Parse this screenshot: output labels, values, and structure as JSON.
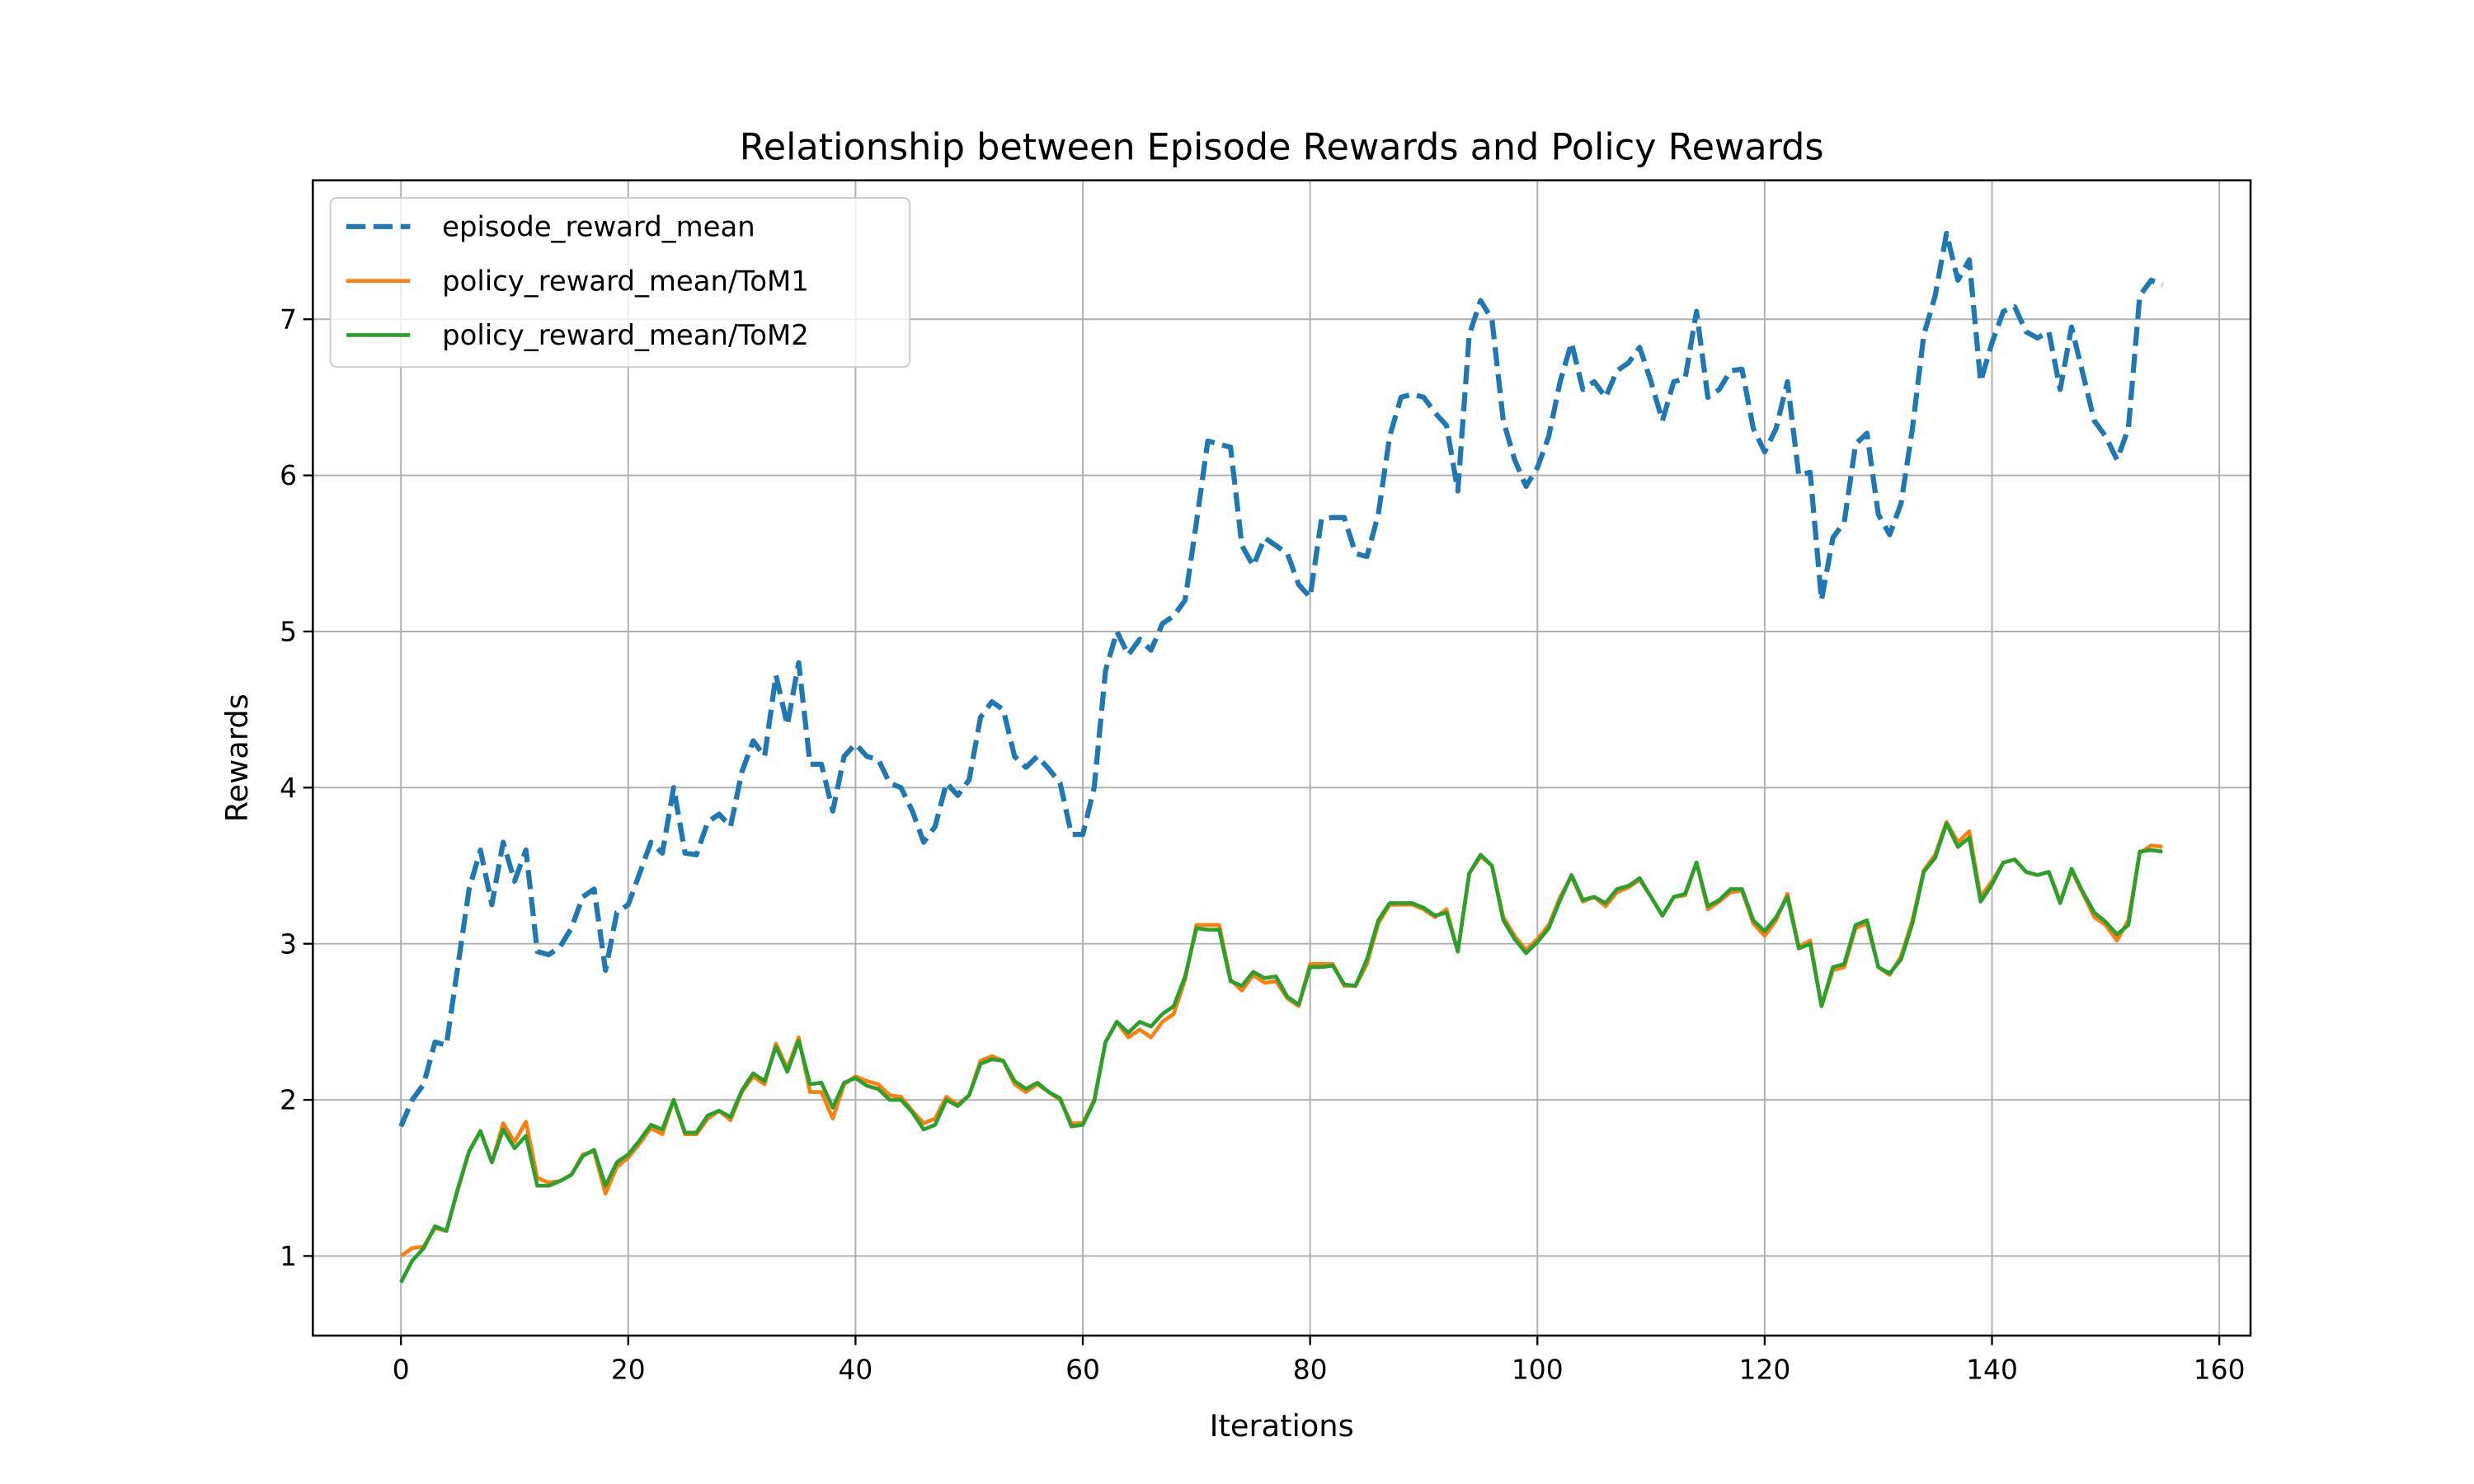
{
  "chart_data": {
    "type": "line",
    "title": "Relationship between Episode Rewards and Policy Rewards",
    "x_label": "Iterations",
    "y_label": "Rewards",
    "xlim": [
      -7.75,
      162.75
    ],
    "ylim": [
      0.49,
      7.89
    ],
    "xticks": [
      0,
      20,
      40,
      60,
      80,
      100,
      120,
      140,
      160
    ],
    "yticks": [
      1,
      2,
      3,
      4,
      5,
      6,
      7
    ],
    "grid": true,
    "legend": "upper left",
    "series": [
      {
        "name": "episode_reward_mean",
        "color": "#1f77b4",
        "dashed": true,
        "values": [
          1.83,
          2.0,
          2.1,
          2.37,
          2.35,
          2.85,
          3.35,
          3.6,
          3.25,
          3.65,
          3.4,
          3.6,
          2.95,
          2.93,
          2.98,
          3.1,
          3.3,
          3.35,
          2.83,
          3.2,
          3.25,
          3.45,
          3.65,
          3.58,
          4.0,
          3.58,
          3.57,
          3.78,
          3.83,
          3.75,
          4.1,
          4.3,
          4.2,
          4.72,
          4.4,
          4.8,
          4.15,
          4.15,
          3.85,
          4.2,
          4.28,
          4.2,
          4.18,
          4.03,
          4.0,
          3.85,
          3.65,
          3.75,
          4.03,
          3.95,
          4.05,
          4.45,
          4.55,
          4.5,
          4.2,
          4.13,
          4.2,
          4.12,
          4.03,
          3.7,
          3.7,
          4.0,
          4.75,
          5.0,
          4.85,
          4.95,
          4.88,
          5.05,
          5.1,
          5.2,
          5.7,
          6.22,
          6.2,
          6.18,
          5.55,
          5.42,
          5.6,
          5.55,
          5.5,
          5.3,
          5.22,
          5.72,
          5.73,
          5.73,
          5.5,
          5.48,
          5.75,
          6.25,
          6.5,
          6.52,
          6.5,
          6.4,
          6.32,
          5.9,
          6.9,
          7.12,
          7.0,
          6.35,
          6.1,
          5.93,
          6.05,
          6.25,
          6.6,
          6.85,
          6.55,
          6.6,
          6.5,
          6.67,
          6.72,
          6.82,
          6.6,
          6.35,
          6.6,
          6.62,
          7.05,
          6.5,
          6.55,
          6.67,
          6.68,
          6.3,
          6.15,
          6.3,
          6.6,
          6.0,
          6.02,
          5.2,
          5.6,
          5.7,
          6.2,
          6.27,
          5.75,
          5.62,
          5.82,
          6.3,
          6.9,
          7.15,
          7.55,
          7.25,
          7.38,
          6.6,
          6.85,
          7.05,
          7.08,
          6.92,
          6.88,
          6.92,
          6.55,
          6.95,
          6.65,
          6.35,
          6.25,
          6.1,
          6.3,
          7.15,
          7.25,
          7.22
        ]
      },
      {
        "name": "policy_reward_mean/ToM1",
        "color": "#ff7f0e",
        "dashed": false,
        "values": [
          1.0,
          1.05,
          1.06,
          1.18,
          1.16,
          1.42,
          1.67,
          1.8,
          1.6,
          1.85,
          1.73,
          1.86,
          1.5,
          1.47,
          1.48,
          1.52,
          1.65,
          1.67,
          1.4,
          1.57,
          1.63,
          1.72,
          1.82,
          1.78,
          2.0,
          1.78,
          1.78,
          1.88,
          1.93,
          1.87,
          2.05,
          2.15,
          2.1,
          2.36,
          2.2,
          2.4,
          2.05,
          2.05,
          1.88,
          2.1,
          2.15,
          2.12,
          2.1,
          2.03,
          2.02,
          1.93,
          1.85,
          1.88,
          2.02,
          1.97,
          2.03,
          2.25,
          2.28,
          2.25,
          2.1,
          2.05,
          2.1,
          2.05,
          2.0,
          1.85,
          1.85,
          2.0,
          2.37,
          2.5,
          2.4,
          2.45,
          2.4,
          2.5,
          2.55,
          2.77,
          3.12,
          3.12,
          3.12,
          2.77,
          2.7,
          2.8,
          2.75,
          2.76,
          2.65,
          2.6,
          2.87,
          2.87,
          2.87,
          2.73,
          2.73,
          2.87,
          3.13,
          3.25,
          3.25,
          3.25,
          3.22,
          3.17,
          3.22,
          2.95,
          3.45,
          3.56,
          3.5,
          3.17,
          3.05,
          2.96,
          3.03,
          3.12,
          3.3,
          3.43,
          3.27,
          3.3,
          3.24,
          3.33,
          3.36,
          3.41,
          3.3,
          3.18,
          3.3,
          3.31,
          3.52,
          3.22,
          3.27,
          3.33,
          3.34,
          3.13,
          3.05,
          3.15,
          3.32,
          2.98,
          3.02,
          2.6,
          2.83,
          2.85,
          3.1,
          3.13,
          2.85,
          2.8,
          2.92,
          3.15,
          3.47,
          3.57,
          3.78,
          3.65,
          3.72,
          3.3,
          3.4,
          3.52,
          3.54,
          3.46,
          3.44,
          3.46,
          3.27,
          3.47,
          3.32,
          3.17,
          3.12,
          3.02,
          3.15,
          3.58,
          3.63,
          3.62
        ]
      },
      {
        "name": "policy_reward_mean/ToM2",
        "color": "#2ca02c",
        "dashed": false,
        "values": [
          0.83,
          0.97,
          1.05,
          1.19,
          1.16,
          1.43,
          1.67,
          1.8,
          1.6,
          1.81,
          1.69,
          1.77,
          1.45,
          1.45,
          1.48,
          1.52,
          1.64,
          1.68,
          1.45,
          1.6,
          1.65,
          1.74,
          1.84,
          1.81,
          2.0,
          1.79,
          1.79,
          1.9,
          1.93,
          1.89,
          2.06,
          2.17,
          2.12,
          2.34,
          2.18,
          2.38,
          2.1,
          2.11,
          1.95,
          2.11,
          2.14,
          2.09,
          2.07,
          2.0,
          2.0,
          1.92,
          1.81,
          1.84,
          2.0,
          1.96,
          2.03,
          2.23,
          2.26,
          2.25,
          2.12,
          2.07,
          2.11,
          2.05,
          2.01,
          1.83,
          1.84,
          1.99,
          2.37,
          2.5,
          2.43,
          2.5,
          2.47,
          2.55,
          2.6,
          2.79,
          3.1,
          3.09,
          3.09,
          2.76,
          2.73,
          2.82,
          2.78,
          2.79,
          2.66,
          2.61,
          2.85,
          2.85,
          2.86,
          2.74,
          2.73,
          2.9,
          3.15,
          3.26,
          3.26,
          3.26,
          3.23,
          3.18,
          3.2,
          2.95,
          3.45,
          3.57,
          3.5,
          3.15,
          3.03,
          2.94,
          3.01,
          3.1,
          3.28,
          3.44,
          3.28,
          3.3,
          3.26,
          3.35,
          3.37,
          3.42,
          3.3,
          3.18,
          3.3,
          3.32,
          3.52,
          3.24,
          3.28,
          3.35,
          3.35,
          3.15,
          3.08,
          3.17,
          3.3,
          2.97,
          3.0,
          2.6,
          2.85,
          2.87,
          3.12,
          3.15,
          2.85,
          2.81,
          2.9,
          3.13,
          3.46,
          3.55,
          3.77,
          3.62,
          3.68,
          3.27,
          3.38,
          3.52,
          3.54,
          3.46,
          3.44,
          3.46,
          3.26,
          3.48,
          3.33,
          3.2,
          3.14,
          3.06,
          3.12,
          3.59,
          3.6,
          3.59
        ]
      }
    ]
  }
}
